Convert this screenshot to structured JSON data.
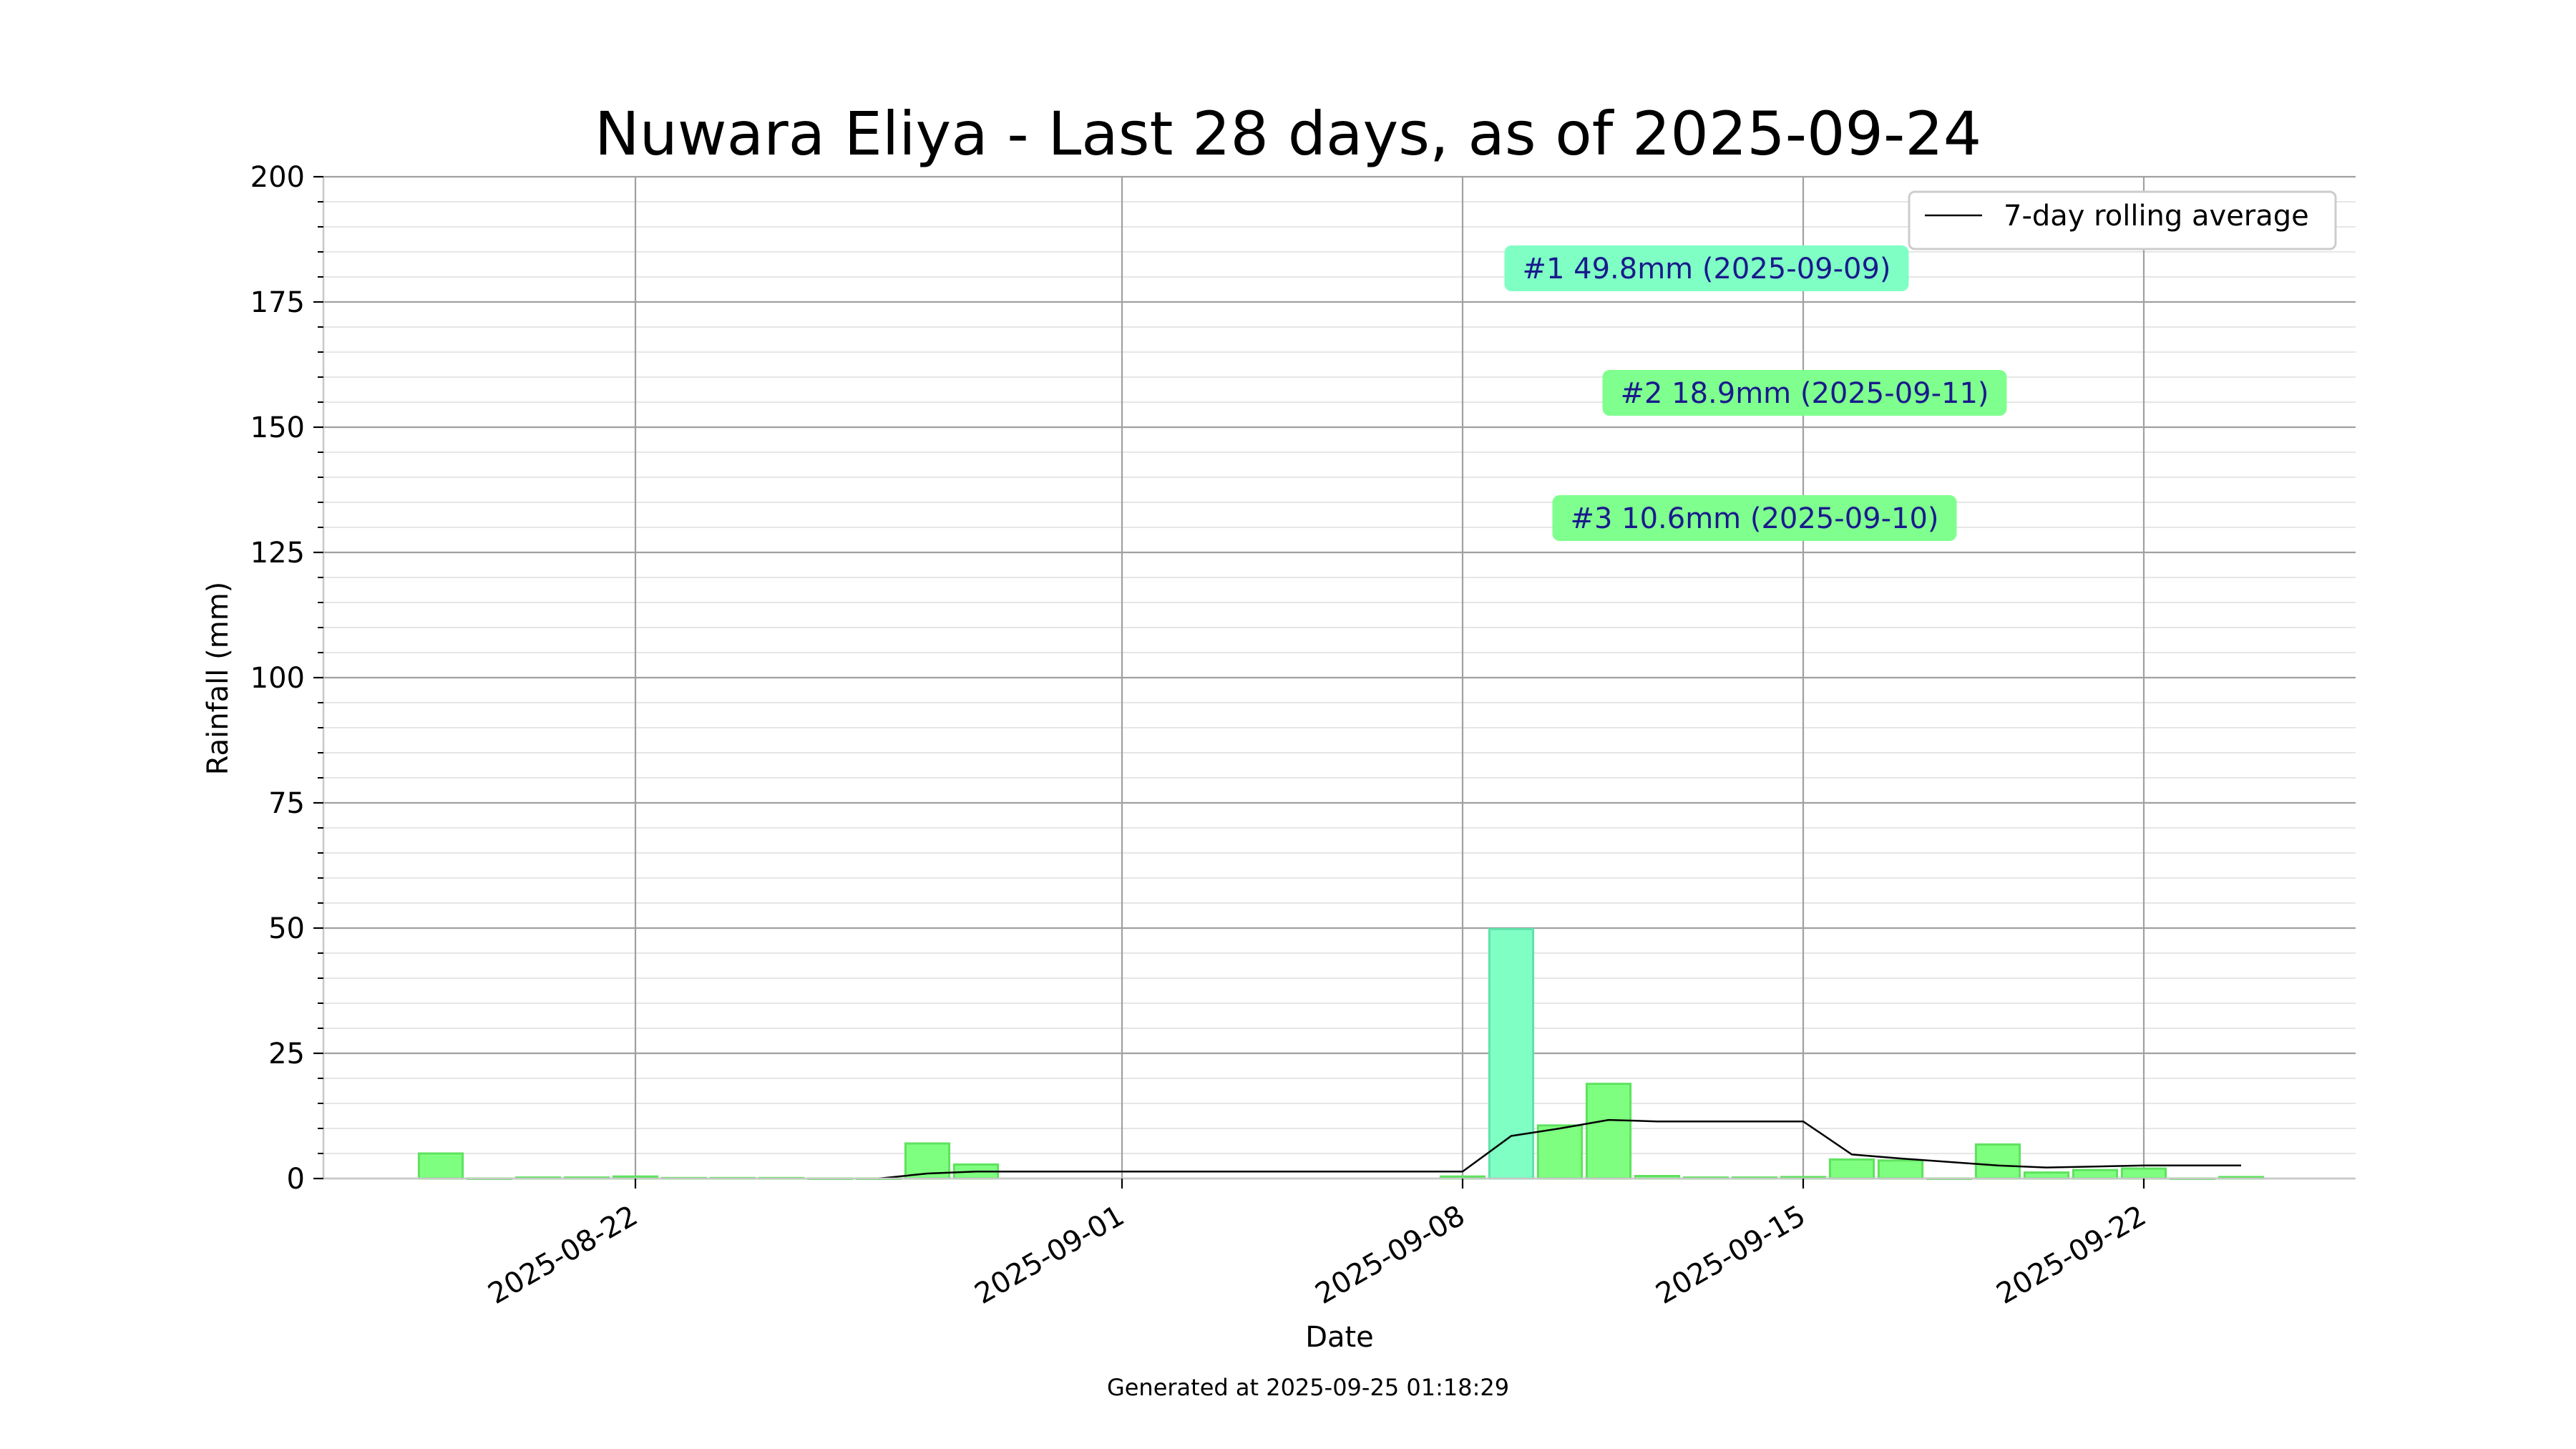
{
  "chart_data": {
    "type": "bar",
    "title": "Nuwara Eliya - Last 28 days, as of 2025-09-24",
    "xlabel": "Date",
    "ylabel": "Rainfall (mm)",
    "ylim": [
      0,
      200
    ],
    "yticks": [
      0,
      25,
      50,
      75,
      100,
      125,
      150,
      175,
      200
    ],
    "xticks": [
      "2025-08-22",
      "2025-09-01",
      "2025-09-08",
      "2025-09-15",
      "2025-09-22"
    ],
    "grid": true,
    "legend_position": "top-right",
    "dates": [
      "2025-08-18",
      "2025-08-19",
      "2025-08-20",
      "2025-08-21",
      "2025-08-22",
      "2025-08-23",
      "2025-08-24",
      "2025-08-25",
      "2025-08-26",
      "2025-08-27",
      "2025-08-28",
      "2025-08-29",
      "2025-09-08",
      "2025-09-09",
      "2025-09-10",
      "2025-09-11",
      "2025-09-12",
      "2025-09-13",
      "2025-09-14",
      "2025-09-15",
      "2025-09-16",
      "2025-09-17",
      "2025-09-18",
      "2025-09-19",
      "2025-09-20",
      "2025-09-21",
      "2025-09-22",
      "2025-09-23",
      "2025-09-24"
    ],
    "values": [
      5.0,
      0.0,
      0.2,
      0.2,
      0.4,
      0.1,
      0.1,
      0.1,
      0.0,
      0.0,
      7.0,
      2.8,
      0.4,
      49.8,
      10.6,
      18.9,
      0.5,
      0.2,
      0.2,
      0.3,
      3.8,
      3.6,
      0.0,
      6.8,
      1.2,
      1.7,
      2.0,
      0.0,
      0.3
    ],
    "highlight_date": "2025-09-09",
    "series": [
      {
        "name": "7-day rolling average",
        "x": [
          "2025-08-27",
          "2025-08-28",
          "2025-08-29",
          "2025-09-01",
          "2025-09-08",
          "2025-09-09",
          "2025-09-10",
          "2025-09-11",
          "2025-09-12",
          "2025-09-15",
          "2025-09-16",
          "2025-09-17",
          "2025-09-19",
          "2025-09-20",
          "2025-09-21",
          "2025-09-22",
          "2025-09-23",
          "2025-09-24"
        ],
        "values": [
          0.0,
          1.0,
          1.4,
          1.4,
          1.4,
          8.5,
          10.0,
          11.7,
          11.4,
          11.4,
          4.8,
          4.0,
          2.6,
          2.2,
          2.4,
          2.6,
          2.6,
          2.6
        ]
      }
    ],
    "annotations": [
      {
        "text": "#1 49.8mm (2025-09-09)",
        "color": "#7fffc4"
      },
      {
        "text": "#2 18.9mm (2025-09-11)",
        "color": "#7fff8e"
      },
      {
        "text": "#3 10.6mm (2025-09-10)",
        "color": "#7fff8e"
      }
    ],
    "colors": {
      "bar": "#7fff7f",
      "bar_edge": "#5fe25f",
      "highlight": "#7fffc4",
      "line": "#000000"
    }
  },
  "footer": "Generated at 2025-09-25 01:18:29"
}
